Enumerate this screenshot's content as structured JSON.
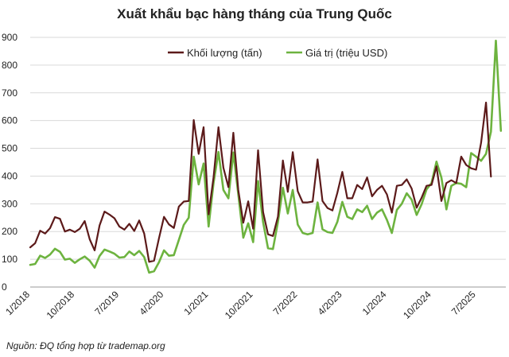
{
  "chart_data": {
    "type": "line",
    "title": "Xuất khẩu bạc hàng tháng của Trung Quốc",
    "source": "Nguồn: ĐQ tổng hợp từ trademap.org",
    "ylim": [
      0,
      900
    ],
    "yticks": [
      0,
      100,
      200,
      300,
      400,
      500,
      600,
      700,
      800,
      900
    ],
    "xticks": [
      {
        "label": "1/2018",
        "index": 0
      },
      {
        "label": "10/2018",
        "index": 9
      },
      {
        "label": "7/2019",
        "index": 18
      },
      {
        "label": "4/2020",
        "index": 27
      },
      {
        "label": "1/2021",
        "index": 36
      },
      {
        "label": "10/2021",
        "index": 45
      },
      {
        "label": "7/2022",
        "index": 54
      },
      {
        "label": "4/2023",
        "index": 63
      },
      {
        "label": "1/2024",
        "index": 72
      },
      {
        "label": "10/2024",
        "index": 81
      },
      {
        "label": "7/2025",
        "index": 90
      }
    ],
    "x_count": 97,
    "grid": true,
    "legend_position": "top-right",
    "series": [
      {
        "name": "Khối lượng (tấn)",
        "color": "#5c1a1a",
        "values": [
          143,
          158,
          203,
          193,
          212,
          252,
          246,
          200,
          207,
          198,
          210,
          238,
          172,
          132,
          222,
          272,
          261,
          248,
          218,
          207,
          228,
          202,
          240,
          193,
          91,
          95,
          177,
          253,
          226,
          213,
          290,
          308,
          310,
          602,
          480,
          576,
          262,
          395,
          576,
          430,
          360,
          556,
          350,
          232,
          309,
          210,
          493,
          270,
          190,
          184,
          254,
          456,
          343,
          486,
          345,
          305,
          305,
          308,
          460,
          310,
          285,
          276,
          340,
          415,
          320,
          320,
          368,
          353,
          395,
          327,
          350,
          365,
          334,
          268,
          365,
          368,
          388,
          355,
          286,
          322,
          365,
          368,
          435,
          310,
          375,
          385,
          375,
          470,
          440,
          428,
          423,
          520,
          665,
          398
        ],
        "values_fill": []
      },
      {
        "name": "Giá trị (triệu USD)",
        "color": "#6db33f",
        "values": [
          80,
          83,
          113,
          105,
          117,
          138,
          127,
          99,
          102,
          87,
          100,
          110,
          95,
          70,
          112,
          135,
          128,
          120,
          106,
          108,
          128,
          115,
          130,
          108,
          52,
          57,
          90,
          132,
          113,
          115,
          170,
          224,
          250,
          470,
          370,
          445,
          218,
          375,
          487,
          350,
          320,
          485,
          335,
          178,
          230,
          162,
          382,
          234,
          140,
          137,
          235,
          358,
          265,
          350,
          225,
          195,
          190,
          195,
          305,
          208,
          198,
          195,
          235,
          307,
          253,
          245,
          280,
          270,
          293,
          245,
          268,
          280,
          242,
          195,
          278,
          300,
          338,
          315,
          260,
          298,
          352,
          375,
          452,
          395,
          280,
          365,
          375,
          372,
          360,
          483,
          470,
          455,
          480,
          560,
          888,
          563
        ]
      }
    ]
  }
}
